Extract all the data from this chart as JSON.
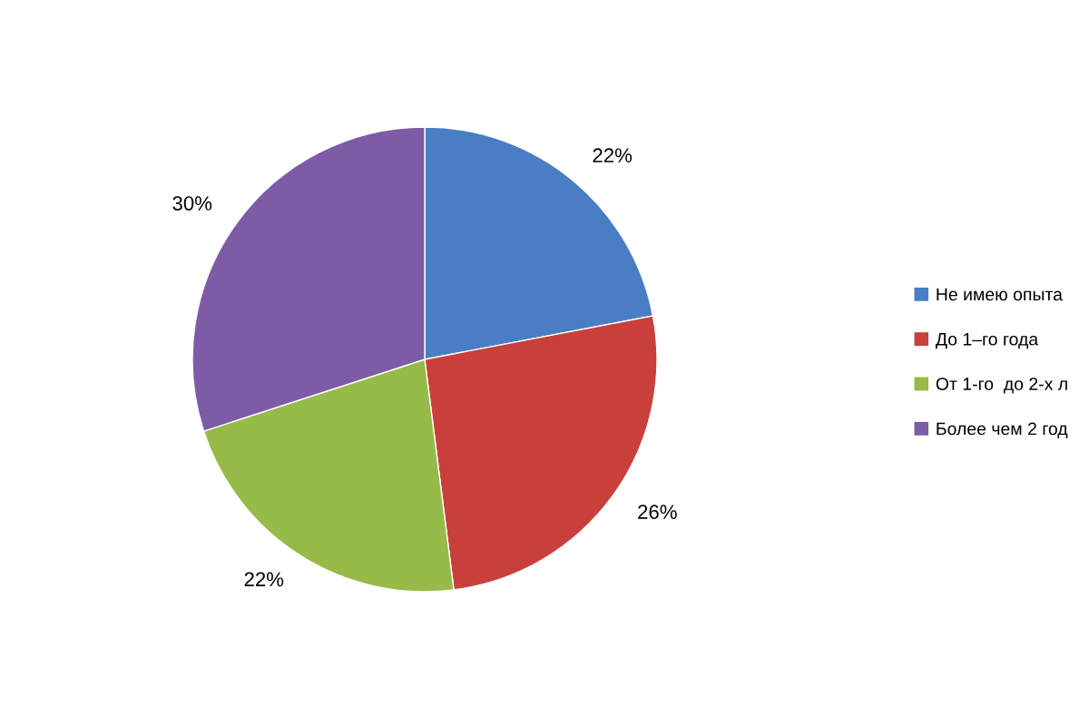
{
  "chart_data": {
    "type": "pie",
    "categories": [
      "Не имею опыта",
      "До 1–го года",
      "От 1-го  до 2-х л",
      "Более чем 2 год"
    ],
    "values": [
      22,
      26,
      22,
      30
    ],
    "colors": [
      "#4a7ec4",
      "#c9403b",
      "#97bb48",
      "#7d5ba6"
    ],
    "value_labels": [
      "22%",
      "26%",
      "22%",
      "30%"
    ],
    "legend": "right"
  }
}
